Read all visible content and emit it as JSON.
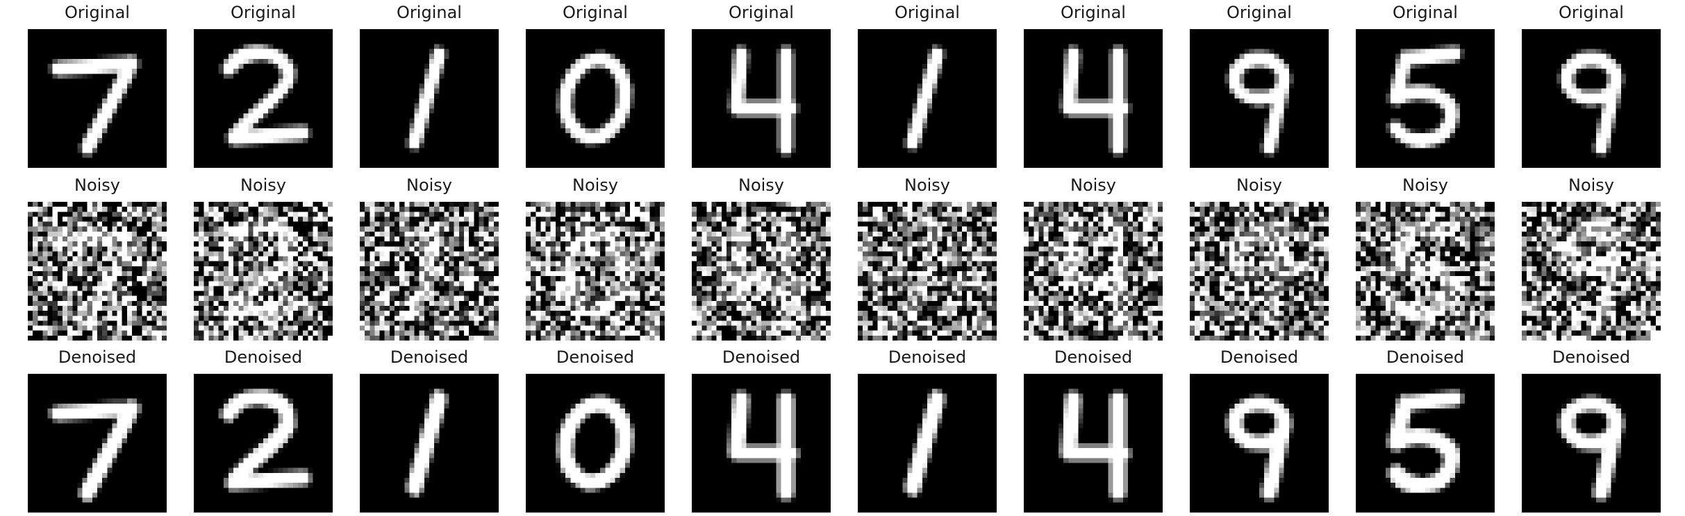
{
  "figure": {
    "rows": [
      {
        "key": "original",
        "title": "Original",
        "style": "clean",
        "digits": [
          "7",
          "2",
          "1",
          "0",
          "4",
          "1",
          "4",
          "9",
          "5",
          "9"
        ]
      },
      {
        "key": "noisy",
        "title": "Noisy",
        "style": "noisy",
        "digits": [
          "7",
          "2",
          "1",
          "0",
          "4",
          "1",
          "4",
          "9",
          "5",
          "9"
        ]
      },
      {
        "key": "denoised",
        "title": "Denoised",
        "style": "smooth",
        "digits": [
          "7",
          "2",
          "1",
          "0",
          "4",
          "1",
          "4",
          "9",
          "5",
          "9"
        ]
      }
    ],
    "colors": {
      "background": "#000000",
      "stroke": "#ffffff",
      "title_text": "#1a1a1a"
    }
  }
}
